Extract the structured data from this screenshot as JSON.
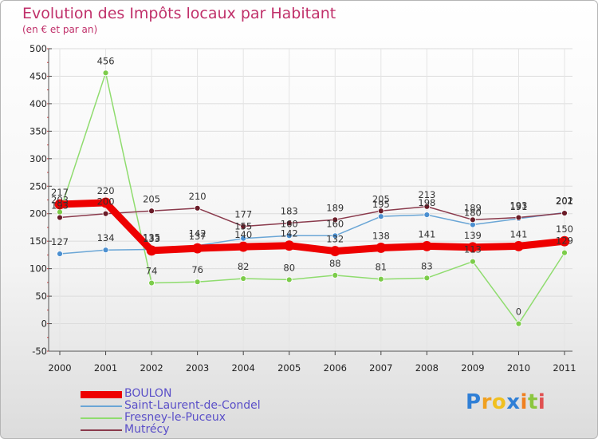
{
  "chart_data": {
    "type": "line",
    "title": "Evolution des Impôts locaux par Habitant",
    "subtitle": "(en € et par an)",
    "x": [
      "2000",
      "2001",
      "2002",
      "2003",
      "2004",
      "2005",
      "2006",
      "2007",
      "2008",
      "2009",
      "2010",
      "2011"
    ],
    "y_ticks": [
      "-50",
      "0",
      "50",
      "100",
      "150",
      "200",
      "250",
      "300",
      "350",
      "400",
      "450",
      "500"
    ],
    "ylim": [
      -50,
      500
    ],
    "series": [
      {
        "name": "Fresney-le-Puceux",
        "color": "#8fdc6e",
        "marker": "#7ccc4a",
        "values": [
          203,
          456,
          74,
          76,
          82,
          80,
          88,
          81,
          83,
          113,
          0,
          129
        ],
        "labels": [
          "203",
          "456",
          "74",
          "76",
          "82",
          "80",
          "88",
          "81",
          "83",
          "113",
          "0",
          "129"
        ]
      },
      {
        "name": "Saint-Laurent-de-Condel",
        "color": "#6aa6d6",
        "marker": "#4b8fd0",
        "values": [
          127,
          134,
          135,
          142,
          155,
          160,
          160,
          195,
          198,
          180,
          191,
          202
        ],
        "labels": [
          "127",
          "134",
          "135",
          "142",
          "155",
          "160",
          "160",
          "195",
          "198",
          "180",
          "191",
          "202"
        ]
      },
      {
        "name": "Mutrécy",
        "color": "#8a3a4c",
        "marker": "#6a1c28",
        "values": [
          193,
          200,
          205,
          210,
          177,
          183,
          189,
          205,
          213,
          189,
          193,
          201
        ],
        "labels": [
          "193",
          "200",
          "205",
          "210",
          "177",
          "183",
          "189",
          "205",
          "213",
          "189",
          "193",
          "201"
        ]
      },
      {
        "name": "BOULON",
        "color": "#ee0000",
        "marker": "#ee0000",
        "values": [
          217,
          220,
          133,
          137,
          140,
          142,
          132,
          138,
          141,
          139,
          141,
          150
        ],
        "labels": [
          "217",
          "220",
          "133",
          "137",
          "140",
          "142",
          "132",
          "138",
          "141",
          "139",
          "141",
          "150"
        ]
      }
    ],
    "legend_order": [
      "BOULON",
      "Saint-Laurent-de-Condel",
      "Fresney-le-Puceux",
      "Mutrécy"
    ],
    "legend_position": "bottom-left"
  },
  "logo": {
    "text": "Proxiti",
    "letters": [
      "P",
      "r",
      "o",
      "x",
      "i",
      "t",
      "i"
    ],
    "colors": [
      "#2f7fd6",
      "#f0a020",
      "#f0c020",
      "#2f7fd6",
      "#f08020",
      "#8bc63f",
      "#e05050"
    ]
  }
}
